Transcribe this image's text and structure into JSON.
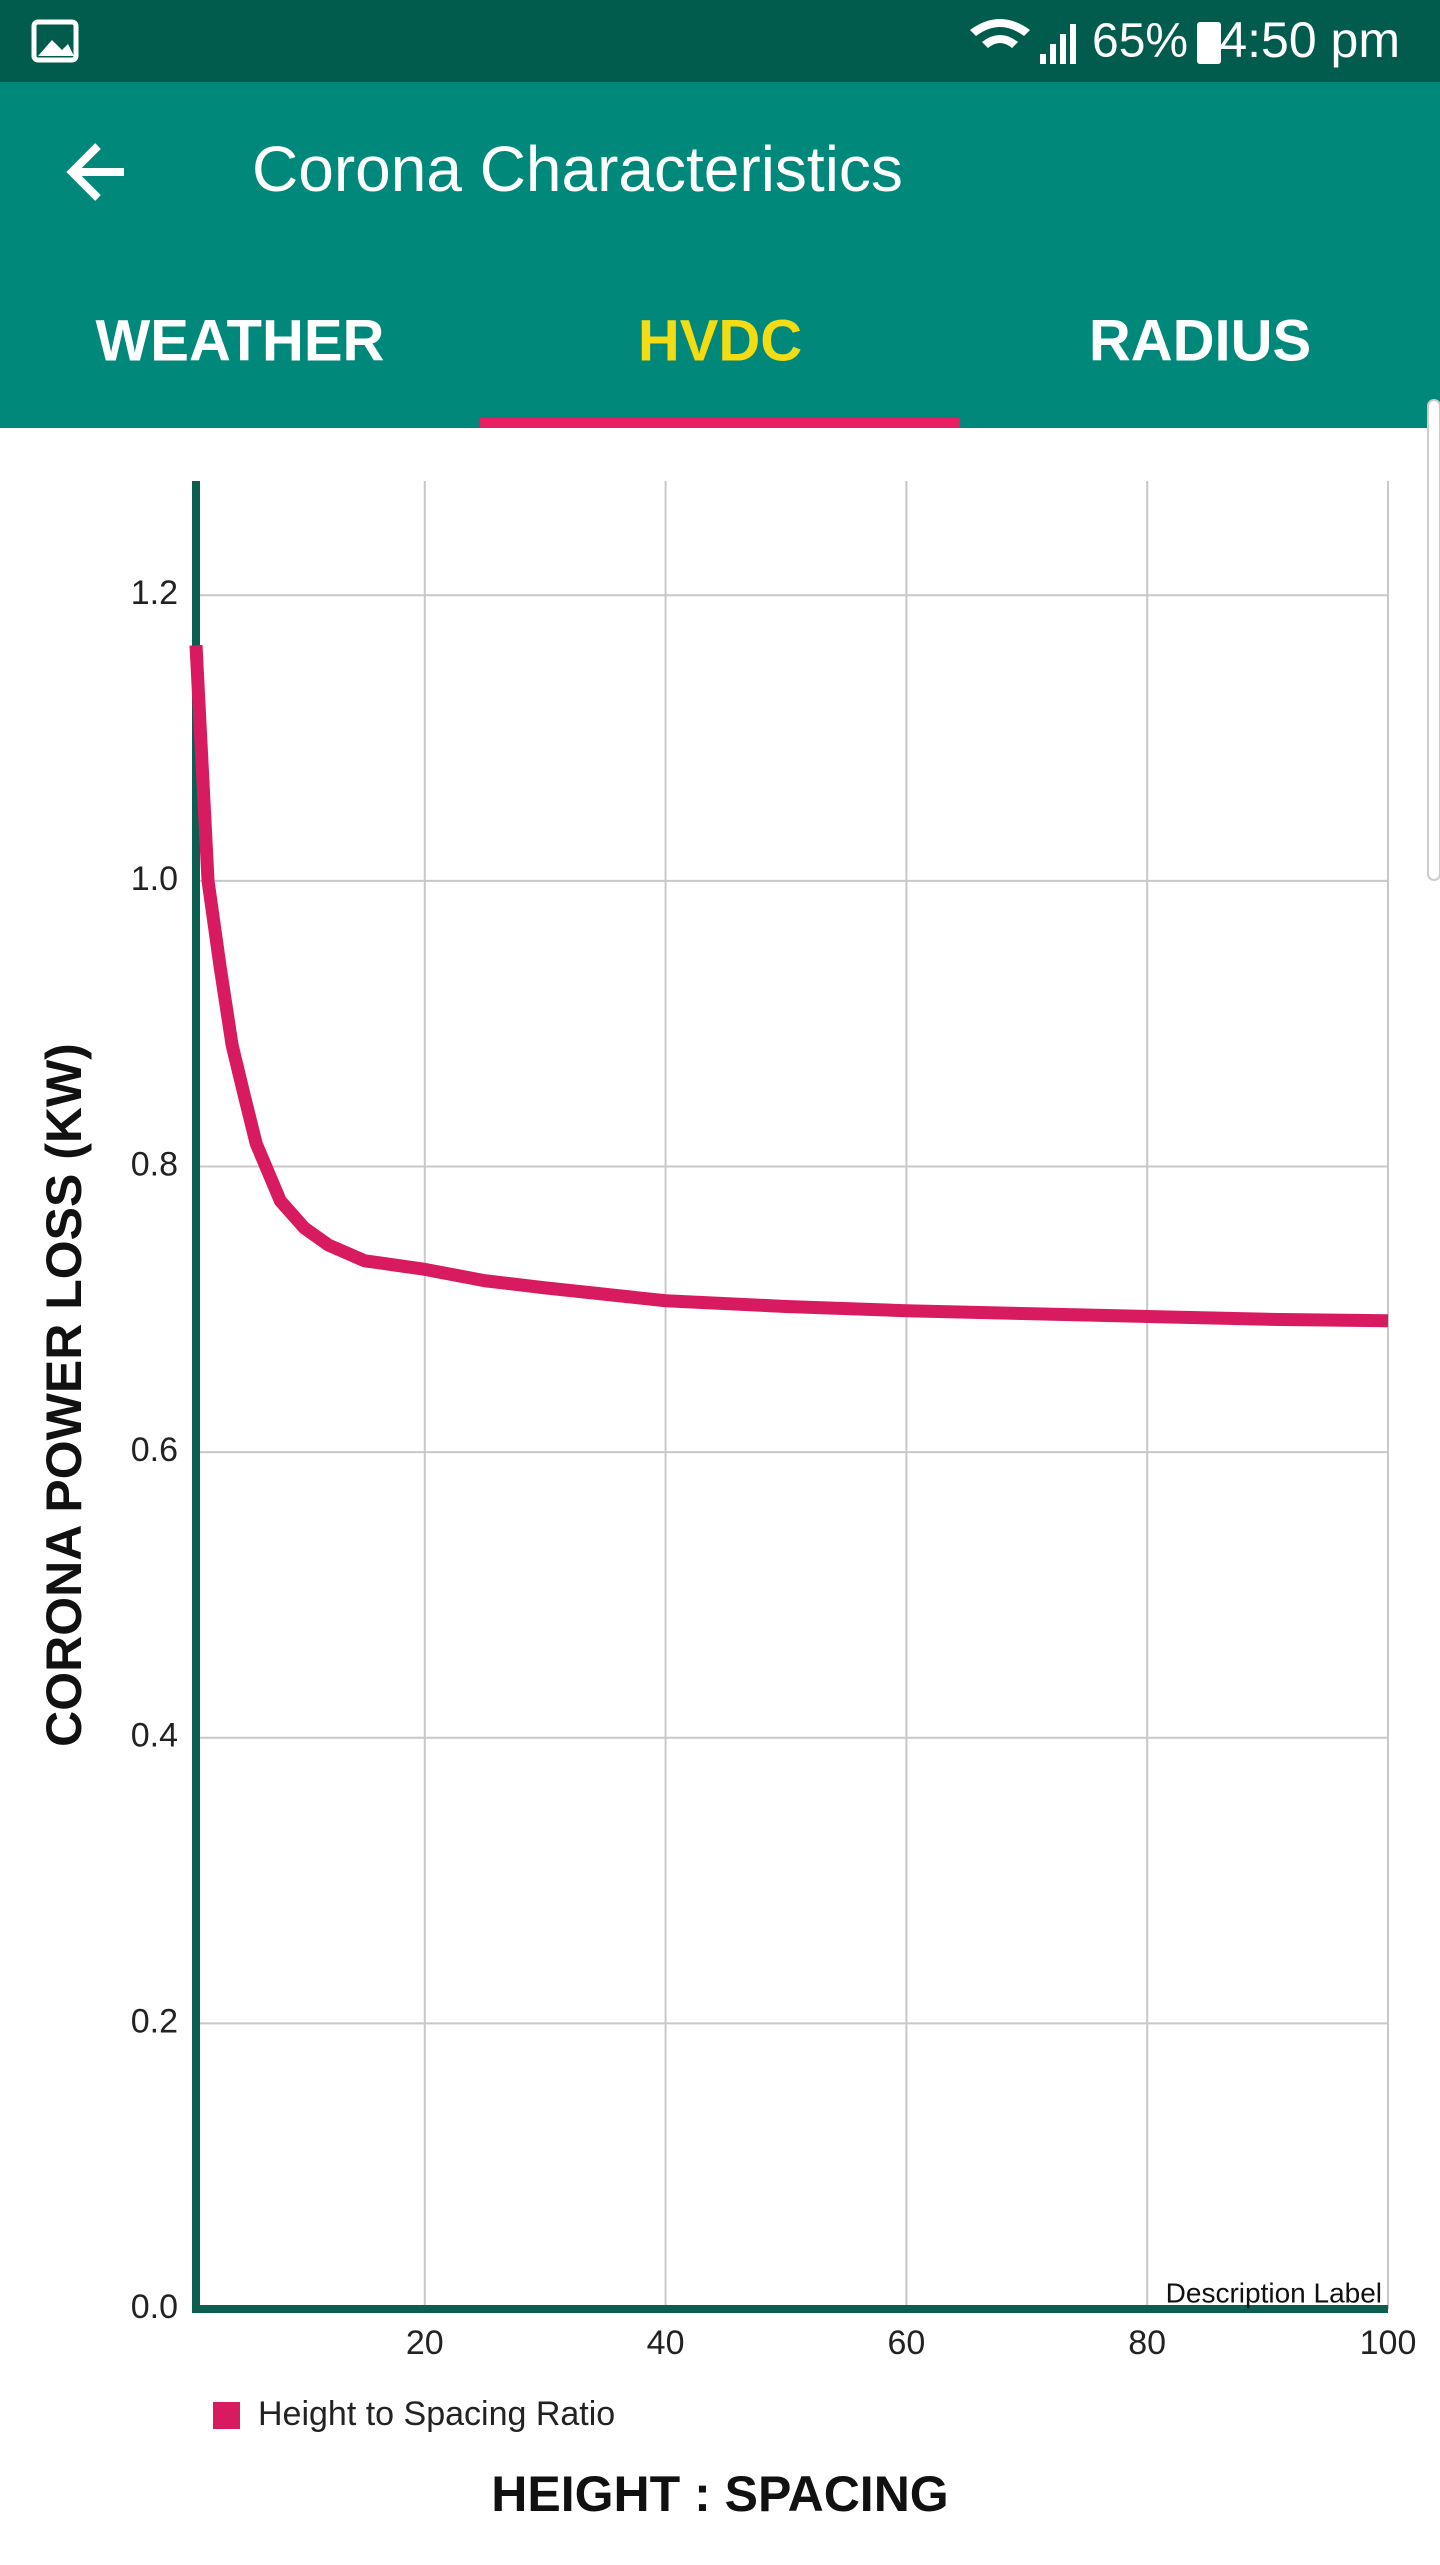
{
  "status_bar": {
    "battery": "65%",
    "time": "4:50 pm"
  },
  "app_bar": {
    "title": "Corona Characteristics"
  },
  "tabs": {
    "items": [
      "WEATHER",
      "HVDC",
      "RADIUS"
    ],
    "selected": 1
  },
  "chart_data": {
    "type": "line",
    "y_label": "CORONA POWER LOSS (KW)",
    "x_label": "HEIGHT : SPACING",
    "description": "Description Label",
    "x": [
      1,
      2,
      3,
      4,
      5,
      6,
      8,
      10,
      12,
      15,
      20,
      25,
      30,
      40,
      50,
      60,
      70,
      80,
      90,
      100
    ],
    "series": [
      {
        "name": "Height to Spacing Ratio",
        "color": "#d81b60",
        "values": [
          1.165,
          1.0,
          0.94,
          0.885,
          0.85,
          0.816,
          0.776,
          0.757,
          0.745,
          0.734,
          0.728,
          0.72,
          0.715,
          0.706,
          0.702,
          0.699,
          0.697,
          0.695,
          0.693,
          0.692
        ]
      }
    ],
    "xlim": [
      1,
      100
    ],
    "ylim": [
      0,
      1.28
    ],
    "xticks": [
      20,
      40,
      60,
      80,
      100
    ],
    "yticks": [
      {
        "value": 0,
        "label": "0.0"
      },
      0.2,
      0.4,
      0.6,
      0.8,
      {
        "value": 1,
        "label": "1.0"
      },
      1.2
    ],
    "grid": true,
    "legend": "bottom-left"
  }
}
